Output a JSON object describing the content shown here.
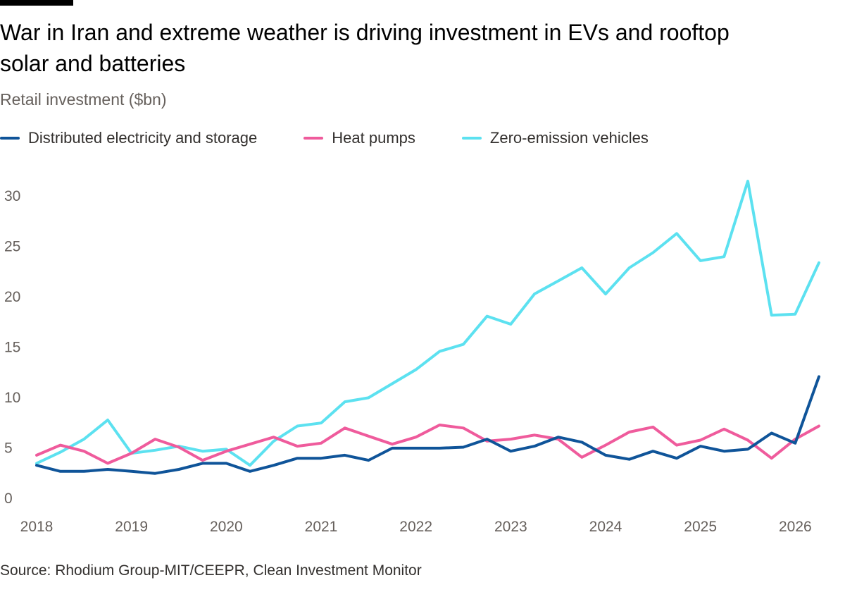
{
  "title": "War in Iran and extreme weather is driving investment in EVs and rooftop solar and batteries",
  "source": "Source: Rhodium Group-MIT/CEEPR, Clean Investment Monitor",
  "chart_data": {
    "type": "line",
    "title": "War in Iran and extreme weather is driving investment in EVs and rooftop solar and batteries",
    "ylabel": "Retail investment ($bn)",
    "xlabel": "",
    "x_ticks": [
      "2018",
      "2019",
      "2020",
      "2021",
      "2022",
      "2023",
      "2024",
      "2025",
      "2026"
    ],
    "y_ticks": [
      "0",
      "5",
      "10",
      "15",
      "20",
      "25",
      "30"
    ],
    "ylim": [
      0,
      31.5
    ],
    "xlim": [
      2018.0,
      2026.25
    ],
    "grid": false,
    "legend": "top-left",
    "x": [
      2018.0,
      2018.25,
      2018.5,
      2018.75,
      2019.0,
      2019.25,
      2019.5,
      2019.75,
      2020.0,
      2020.25,
      2020.5,
      2020.75,
      2021.0,
      2021.25,
      2021.5,
      2021.75,
      2022.0,
      2022.25,
      2022.5,
      2022.75,
      2023.0,
      2023.25,
      2023.5,
      2023.75,
      2024.0,
      2024.25,
      2024.5,
      2024.75,
      2025.0,
      2025.25,
      2025.5,
      2025.75,
      2026.0,
      2026.25
    ],
    "series": [
      {
        "name": "Distributed electricity and storage",
        "color": "#0f5499",
        "values": [
          3.2,
          2.6,
          2.6,
          2.8,
          2.6,
          2.4,
          2.8,
          3.4,
          3.4,
          2.6,
          3.2,
          3.9,
          3.9,
          4.2,
          3.7,
          4.9,
          4.9,
          4.9,
          5.0,
          5.8,
          4.6,
          5.1,
          6.0,
          5.5,
          4.2,
          3.8,
          4.6,
          3.9,
          5.1,
          4.6,
          4.8,
          6.4,
          5.4,
          12.0
        ]
      },
      {
        "name": "Heat pumps",
        "color": "#ef5b9c",
        "values": [
          4.2,
          5.2,
          4.6,
          3.4,
          4.4,
          5.8,
          5.0,
          3.7,
          4.6,
          5.3,
          6.0,
          5.1,
          5.4,
          6.9,
          6.1,
          5.3,
          6.0,
          7.2,
          6.9,
          5.6,
          5.8,
          6.2,
          5.8,
          4.0,
          5.2,
          6.5,
          7.0,
          5.2,
          5.7,
          6.8,
          5.7,
          3.9,
          5.8,
          7.1
        ]
      },
      {
        "name": "Zero-emission vehicles",
        "color": "#5ce1f0",
        "values": [
          3.4,
          4.5,
          5.8,
          7.7,
          4.4,
          4.7,
          5.1,
          4.6,
          4.8,
          3.2,
          5.6,
          7.1,
          7.4,
          9.5,
          9.9,
          11.3,
          12.7,
          14.5,
          15.2,
          18.0,
          17.2,
          20.2,
          21.5,
          22.8,
          20.2,
          22.8,
          24.3,
          26.2,
          23.5,
          23.9,
          31.4,
          18.1,
          18.2,
          23.3
        ]
      }
    ]
  }
}
